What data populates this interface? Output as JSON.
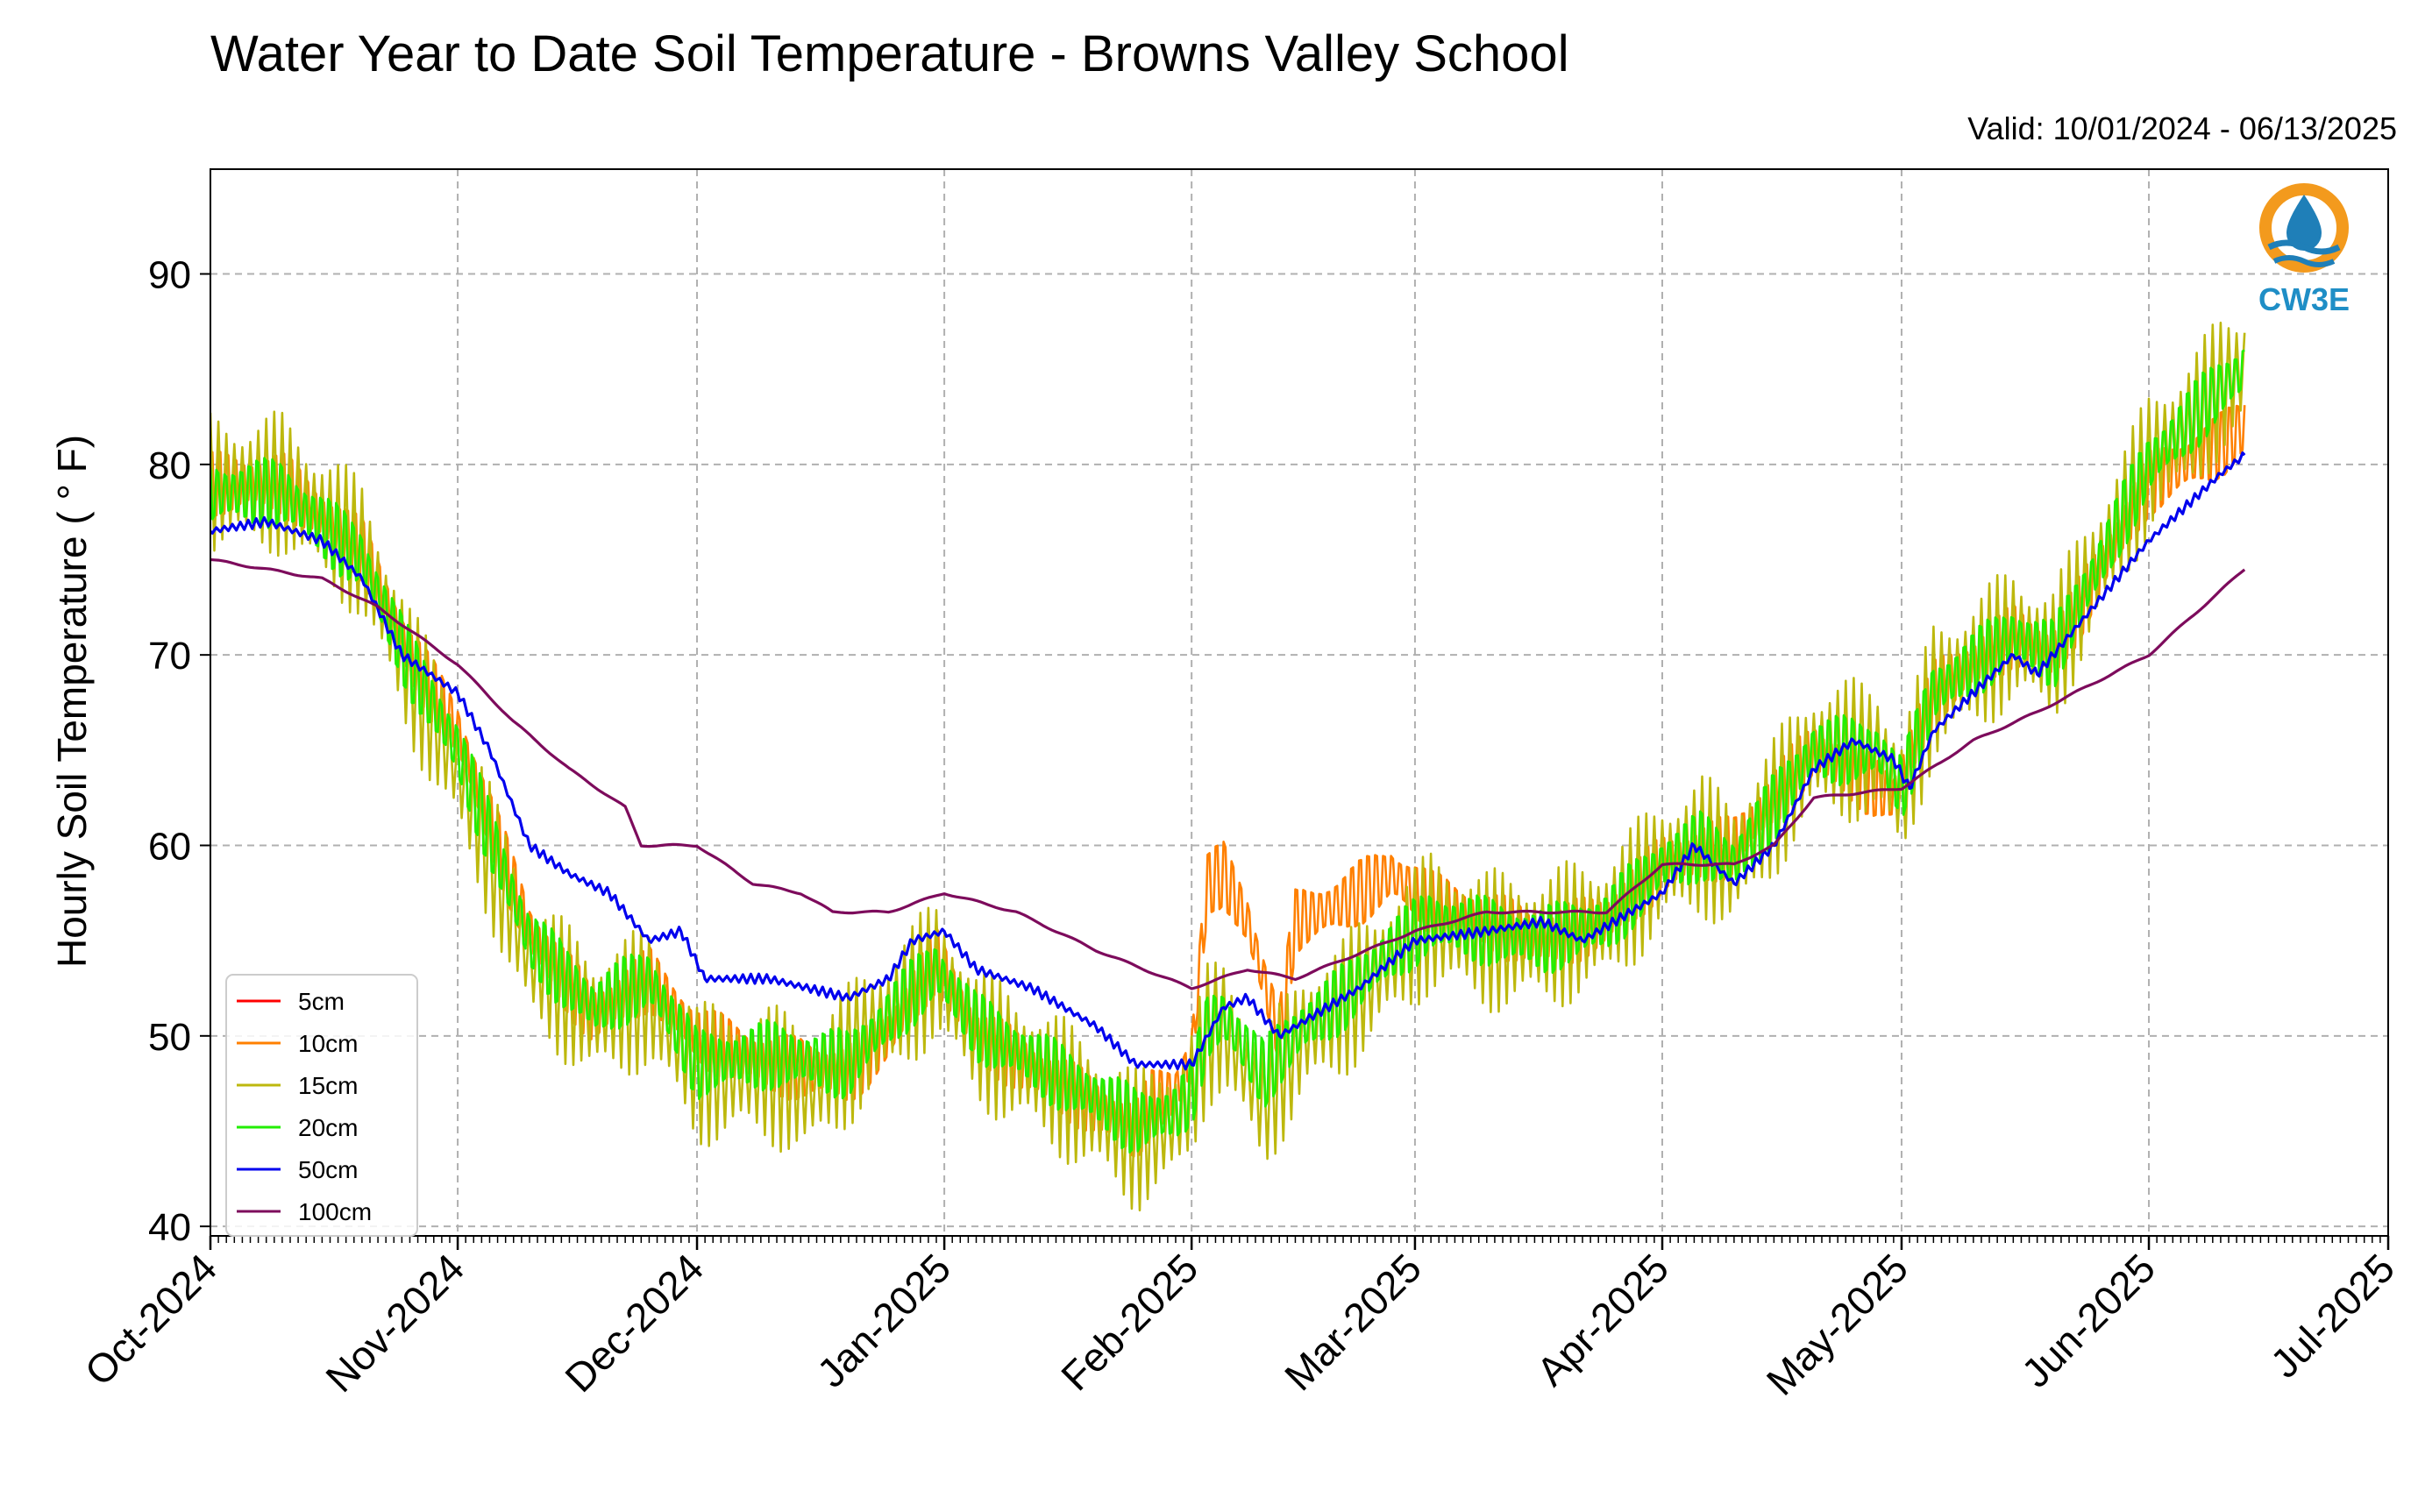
{
  "header": {
    "title": "Water Year to Date Soil Temperature - Browns Valley School",
    "valid": "Valid: 10/01/2024 - 06/13/2025"
  },
  "logo": {
    "text": "CW3E",
    "icon": "water-drop-logo-icon",
    "ring_color": "#f39a1d",
    "wave_color": "#1f7fb8"
  },
  "chart_data": {
    "type": "line",
    "title": "Water Year to Date Soil Temperature - Browns Valley School",
    "ylabel": "Hourly Soil Temperature ( ° F)",
    "xlabel": "",
    "ylim": [
      39.5,
      95.5
    ],
    "xlim": [
      "2024-10-01",
      "2025-07-01"
    ],
    "grid": true,
    "legend_position": "lower-left",
    "y_ticks": [
      40,
      50,
      60,
      70,
      80,
      90
    ],
    "x_ticks": [
      {
        "date": "2024-10-01",
        "label": "Oct-2024"
      },
      {
        "date": "2024-11-01",
        "label": "Nov-2024"
      },
      {
        "date": "2024-12-01",
        "label": "Dec-2024"
      },
      {
        "date": "2025-01-01",
        "label": "Jan-2025"
      },
      {
        "date": "2025-02-01",
        "label": "Feb-2025"
      },
      {
        "date": "2025-03-01",
        "label": "Mar-2025"
      },
      {
        "date": "2025-04-01",
        "label": "Apr-2025"
      },
      {
        "date": "2025-05-01",
        "label": "May-2025"
      },
      {
        "date": "2025-06-01",
        "label": "Jun-2025"
      },
      {
        "date": "2025-07-01",
        "label": "Jul-2025"
      }
    ],
    "series": [
      {
        "name": "5cm",
        "color": "#ff0000",
        "points": []
      },
      {
        "name": "10cm",
        "color": "#ff8000",
        "points": [
          [
            "2024-10-01",
            79
          ],
          [
            "2024-10-10",
            79
          ],
          [
            "2024-10-20",
            75.5
          ],
          [
            "2024-10-26",
            70
          ],
          [
            "2024-11-01",
            66
          ],
          [
            "2024-11-10",
            55.5
          ],
          [
            "2024-11-18",
            51
          ],
          [
            "2024-11-25",
            53
          ],
          [
            "2024-12-01",
            50
          ],
          [
            "2024-12-10",
            48.5
          ],
          [
            "2024-12-20",
            48
          ],
          [
            "2024-12-25",
            50
          ],
          [
            "2024-12-31",
            54
          ],
          [
            "2025-01-05",
            50
          ],
          [
            "2025-01-15",
            47.5
          ],
          [
            "2025-01-25",
            45
          ],
          [
            "2025-01-27",
            46.5
          ],
          [
            "2025-01-30",
            47
          ],
          [
            "2025-02-01",
            49
          ],
          [
            "2025-02-03",
            58
          ],
          [
            "2025-02-05",
            58.5
          ],
          [
            "2025-02-08",
            56
          ],
          [
            "2025-02-10",
            53
          ],
          [
            "2025-02-12",
            50
          ],
          [
            "2025-02-14",
            56
          ],
          [
            "2025-02-20",
            57
          ],
          [
            "2025-02-26",
            58.5
          ],
          [
            "2025-03-03",
            57
          ],
          [
            "2025-03-10",
            56
          ],
          [
            "2025-03-17",
            55
          ],
          [
            "2025-03-25",
            56
          ],
          [
            "2025-04-01",
            59
          ],
          [
            "2025-04-10",
            60
          ],
          [
            "2025-04-20",
            65
          ],
          [
            "2025-04-30",
            62.5
          ],
          [
            "2025-05-05",
            68
          ],
          [
            "2025-05-15",
            71
          ],
          [
            "2025-05-20",
            70
          ],
          [
            "2025-06-01",
            79
          ],
          [
            "2025-06-10",
            81
          ],
          [
            "2025-06-13",
            82
          ]
        ]
      },
      {
        "name": "15cm",
        "color": "#bdb80d",
        "points": [
          [
            "2024-10-01",
            79
          ],
          [
            "2024-10-10",
            79
          ],
          [
            "2024-10-20",
            75.5
          ],
          [
            "2024-10-26",
            69
          ],
          [
            "2024-11-01",
            64
          ],
          [
            "2024-11-10",
            54
          ],
          [
            "2024-11-18",
            51
          ],
          [
            "2024-11-25",
            52
          ],
          [
            "2024-12-01",
            48
          ],
          [
            "2024-12-10",
            48
          ],
          [
            "2024-12-15",
            47
          ],
          [
            "2024-12-20",
            49
          ],
          [
            "2024-12-25",
            51
          ],
          [
            "2024-12-31",
            53.5
          ],
          [
            "2025-01-05",
            50
          ],
          [
            "2025-01-15",
            47.5
          ],
          [
            "2025-01-25",
            44.5
          ],
          [
            "2025-01-30",
            45.5
          ],
          [
            "2025-02-01",
            47
          ],
          [
            "2025-02-03",
            50
          ],
          [
            "2025-02-05",
            50.5
          ],
          [
            "2025-02-10",
            46.5
          ],
          [
            "2025-02-15",
            50
          ],
          [
            "2025-02-20",
            51.5
          ],
          [
            "2025-02-26",
            54
          ],
          [
            "2025-03-03",
            56
          ],
          [
            "2025-03-10",
            55
          ],
          [
            "2025-03-17",
            55
          ],
          [
            "2025-03-25",
            56
          ],
          [
            "2025-04-01",
            59
          ],
          [
            "2025-04-06",
            60
          ],
          [
            "2025-04-10",
            59
          ],
          [
            "2025-04-20",
            65
          ],
          [
            "2025-04-28",
            65
          ],
          [
            "2025-05-01",
            62.5
          ],
          [
            "2025-05-05",
            68
          ],
          [
            "2025-05-15",
            71
          ],
          [
            "2025-05-20",
            70
          ],
          [
            "2025-06-01",
            80
          ],
          [
            "2025-06-10",
            84
          ],
          [
            "2025-06-13",
            85
          ]
        ]
      },
      {
        "name": "20cm",
        "color": "#22ee00",
        "points": [
          [
            "2024-10-01",
            78.5
          ],
          [
            "2024-10-10",
            78.5
          ],
          [
            "2024-10-20",
            75
          ],
          [
            "2024-10-26",
            69.5
          ],
          [
            "2024-11-01",
            65
          ],
          [
            "2024-11-10",
            55
          ],
          [
            "2024-11-18",
            51.5
          ],
          [
            "2024-11-25",
            53
          ],
          [
            "2024-12-01",
            48.5
          ],
          [
            "2024-12-10",
            49
          ],
          [
            "2024-12-20",
            48.5
          ],
          [
            "2024-12-25",
            51
          ],
          [
            "2024-12-31",
            53.5
          ],
          [
            "2025-01-05",
            50.5
          ],
          [
            "2025-01-15",
            48
          ],
          [
            "2025-01-25",
            45.5
          ],
          [
            "2025-01-30",
            46
          ],
          [
            "2025-02-01",
            47
          ],
          [
            "2025-02-03",
            50.5
          ],
          [
            "2025-02-05",
            51
          ],
          [
            "2025-02-10",
            48
          ],
          [
            "2025-02-15",
            50.5
          ],
          [
            "2025-02-20",
            52
          ],
          [
            "2025-02-26",
            54.5
          ],
          [
            "2025-03-03",
            56
          ],
          [
            "2025-03-10",
            55.5
          ],
          [
            "2025-03-17",
            55
          ],
          [
            "2025-03-25",
            56
          ],
          [
            "2025-04-01",
            59
          ],
          [
            "2025-04-06",
            60
          ],
          [
            "2025-04-10",
            59
          ],
          [
            "2025-04-20",
            65
          ],
          [
            "2025-04-28",
            65
          ],
          [
            "2025-05-01",
            63
          ],
          [
            "2025-05-05",
            68
          ],
          [
            "2025-05-15",
            71
          ],
          [
            "2025-05-20",
            70
          ],
          [
            "2025-06-01",
            80
          ],
          [
            "2025-06-10",
            84
          ],
          [
            "2025-06-13",
            85
          ]
        ]
      },
      {
        "name": "50cm",
        "color": "#0000ee",
        "points": [
          [
            "2024-10-01",
            76.5
          ],
          [
            "2024-10-08",
            77
          ],
          [
            "2024-10-15",
            76
          ],
          [
            "2024-10-20",
            74
          ],
          [
            "2024-10-25",
            70
          ],
          [
            "2024-11-01",
            68
          ],
          [
            "2024-11-05",
            65
          ],
          [
            "2024-11-10",
            60
          ],
          [
            "2024-11-15",
            58.5
          ],
          [
            "2024-11-20",
            57.5
          ],
          [
            "2024-11-25",
            55
          ],
          [
            "2024-11-29",
            55.5
          ],
          [
            "2024-12-02",
            53
          ],
          [
            "2024-12-10",
            53
          ],
          [
            "2024-12-15",
            52.5
          ],
          [
            "2024-12-20",
            52
          ],
          [
            "2024-12-25",
            53
          ],
          [
            "2024-12-28",
            55
          ],
          [
            "2025-01-01",
            55.5
          ],
          [
            "2025-01-05",
            53.5
          ],
          [
            "2025-01-12",
            52.5
          ],
          [
            "2025-01-20",
            50.5
          ],
          [
            "2025-01-25",
            48.5
          ],
          [
            "2025-02-01",
            48.5
          ],
          [
            "2025-02-05",
            51.5
          ],
          [
            "2025-02-08",
            52
          ],
          [
            "2025-02-12",
            50
          ],
          [
            "2025-02-16",
            51
          ],
          [
            "2025-02-22",
            52.5
          ],
          [
            "2025-03-01",
            55
          ],
          [
            "2025-03-10",
            55.5
          ],
          [
            "2025-03-17",
            56
          ],
          [
            "2025-03-22",
            55
          ],
          [
            "2025-04-01",
            57.5
          ],
          [
            "2025-04-05",
            60
          ],
          [
            "2025-04-10",
            58
          ],
          [
            "2025-04-15",
            60
          ],
          [
            "2025-04-20",
            64
          ],
          [
            "2025-04-25",
            65.5
          ],
          [
            "2025-04-30",
            64.5
          ],
          [
            "2025-05-02",
            63
          ],
          [
            "2025-05-05",
            66
          ],
          [
            "2025-05-15",
            70
          ],
          [
            "2025-05-18",
            69
          ],
          [
            "2025-06-01",
            76
          ],
          [
            "2025-06-10",
            79.5
          ],
          [
            "2025-06-13",
            80.5
          ]
        ]
      },
      {
        "name": "100cm",
        "color": "#7d0b5c",
        "points": [
          [
            "2024-10-01",
            75
          ],
          [
            "2024-10-08",
            74.5
          ],
          [
            "2024-10-15",
            74
          ],
          [
            "2024-10-22",
            72.5
          ],
          [
            "2024-11-01",
            69.5
          ],
          [
            "2024-11-08",
            66.5
          ],
          [
            "2024-11-15",
            64
          ],
          [
            "2024-11-22",
            62
          ],
          [
            "2024-11-24",
            60
          ],
          [
            "2024-12-01",
            60
          ],
          [
            "2024-12-08",
            58
          ],
          [
            "2024-12-14",
            57.5
          ],
          [
            "2024-12-18",
            56.5
          ],
          [
            "2024-12-25",
            56.5
          ],
          [
            "2025-01-01",
            57.5
          ],
          [
            "2025-01-10",
            56.5
          ],
          [
            "2025-01-20",
            54.5
          ],
          [
            "2025-02-01",
            52.5
          ],
          [
            "2025-02-08",
            53.5
          ],
          [
            "2025-02-14",
            53
          ],
          [
            "2025-02-20",
            54
          ],
          [
            "2025-03-01",
            55.5
          ],
          [
            "2025-03-10",
            56.5
          ],
          [
            "2025-03-18",
            56.5
          ],
          [
            "2025-03-25",
            56.5
          ],
          [
            "2025-04-01",
            59
          ],
          [
            "2025-04-10",
            59
          ],
          [
            "2025-04-15",
            60
          ],
          [
            "2025-04-20",
            62.5
          ],
          [
            "2025-05-01",
            63
          ],
          [
            "2025-05-10",
            65.5
          ],
          [
            "2025-05-18",
            67
          ],
          [
            "2025-06-01",
            70
          ],
          [
            "2025-06-13",
            74.5
          ]
        ]
      }
    ]
  }
}
